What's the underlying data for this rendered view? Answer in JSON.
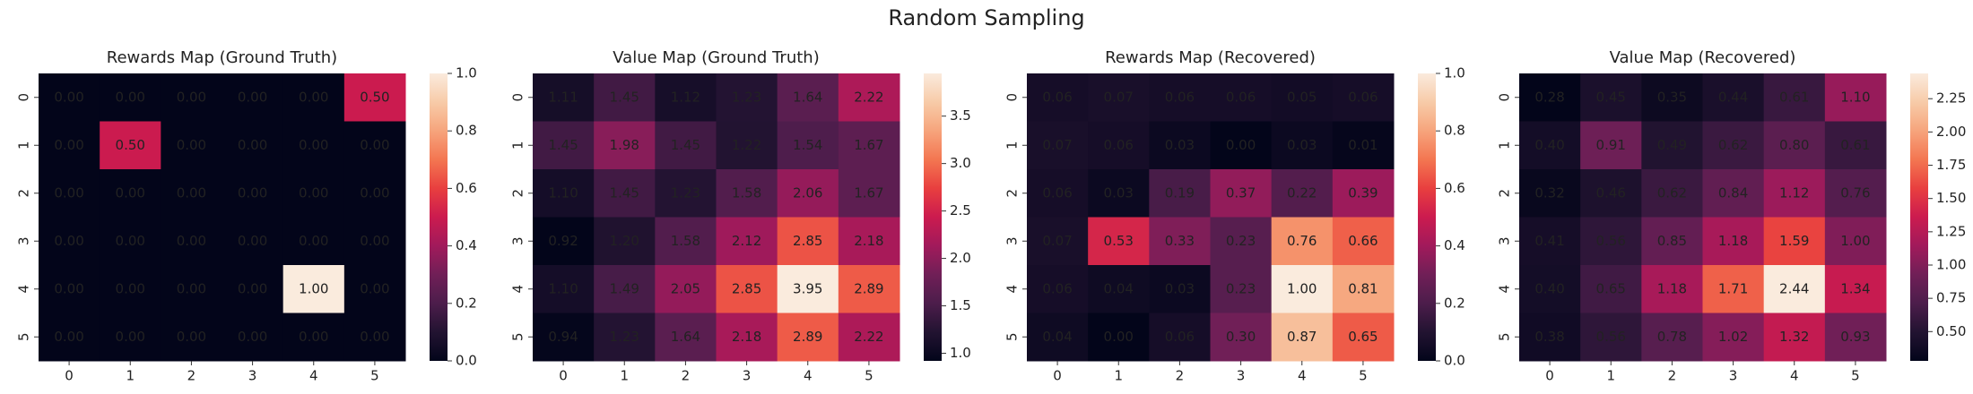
{
  "title": "Random Sampling",
  "chart_data": [
    {
      "type": "heatmap",
      "title": "Rewards Map (Ground Truth)",
      "colormap": "rocket",
      "x": [
        "0",
        "1",
        "2",
        "3",
        "4",
        "5"
      ],
      "y": [
        "0",
        "1",
        "2",
        "3",
        "4",
        "5"
      ],
      "values": [
        [
          0,
          0,
          0,
          0,
          0,
          0.5
        ],
        [
          0,
          0.5,
          0,
          0,
          0,
          0
        ],
        [
          0,
          0,
          0,
          0,
          0,
          0
        ],
        [
          0,
          0,
          0,
          0,
          0,
          0
        ],
        [
          0,
          0,
          0,
          0,
          1,
          0
        ],
        [
          0,
          0,
          0,
          0,
          0,
          0
        ]
      ],
      "value_labels": [
        [
          "0.00",
          "0.00",
          "0.00",
          "0.00",
          "0.00",
          "0.50"
        ],
        [
          "0.00",
          "0.50",
          "0.00",
          "0.00",
          "0.00",
          "0.00"
        ],
        [
          "0.00",
          "0.00",
          "0.00",
          "0.00",
          "0.00",
          "0.00"
        ],
        [
          "0.00",
          "0.00",
          "0.00",
          "0.00",
          "0.00",
          "0.00"
        ],
        [
          "0.00",
          "0.00",
          "0.00",
          "0.00",
          "1.00",
          "0.00"
        ],
        [
          "0.00",
          "0.00",
          "0.00",
          "0.00",
          "0.00",
          "0.00"
        ]
      ],
      "clim": [
        0,
        1
      ],
      "cticks": [
        {
          "value": 0,
          "label": "0.0"
        },
        0.2,
        0.4,
        0.6,
        0.8,
        {
          "value": 1,
          "label": "1.0"
        }
      ]
    },
    {
      "type": "heatmap",
      "title": "Value Map (Ground Truth)",
      "colormap": "rocket",
      "x": [
        "0",
        "1",
        "2",
        "3",
        "4",
        "5"
      ],
      "y": [
        "0",
        "1",
        "2",
        "3",
        "4",
        "5"
      ],
      "values": [
        [
          1.11,
          1.45,
          1.12,
          1.23,
          1.64,
          2.22
        ],
        [
          1.45,
          1.98,
          1.45,
          1.22,
          1.54,
          1.67
        ],
        [
          1.1,
          1.45,
          1.23,
          1.58,
          2.06,
          1.67
        ],
        [
          0.92,
          1.2,
          1.58,
          2.12,
          2.85,
          2.18
        ],
        [
          1.1,
          1.49,
          2.05,
          2.85,
          3.95,
          2.89
        ],
        [
          0.94,
          1.23,
          1.64,
          2.18,
          2.89,
          2.22
        ]
      ],
      "value_labels": [
        [
          "1.11",
          "1.45",
          "1.12",
          "1.23",
          "1.64",
          "2.22"
        ],
        [
          "1.45",
          "1.98",
          "1.45",
          "1.22",
          "1.54",
          "1.67"
        ],
        [
          "1.10",
          "1.45",
          "1.23",
          "1.58",
          "2.06",
          "1.67"
        ],
        [
          "0.92",
          "1.20",
          "1.58",
          "2.12",
          "2.85",
          "2.18"
        ],
        [
          "1.10",
          "1.49",
          "2.05",
          "2.85",
          "3.95",
          "2.89"
        ],
        [
          "0.94",
          "1.23",
          "1.64",
          "2.18",
          "2.89",
          "2.22"
        ]
      ],
      "clim": [
        0.92,
        3.95
      ],
      "cticks": [
        {
          "value": 1,
          "label": "1.0"
        },
        1.5,
        {
          "value": 2,
          "label": "2.0"
        },
        2.5,
        {
          "value": 3,
          "label": "3.0"
        },
        3.5
      ]
    },
    {
      "type": "heatmap",
      "title": "Rewards Map (Recovered)",
      "colormap": "rocket",
      "x": [
        "0",
        "1",
        "2",
        "3",
        "4",
        "5"
      ],
      "y": [
        "0",
        "1",
        "2",
        "3",
        "4",
        "5"
      ],
      "values": [
        [
          0.06,
          0.07,
          0.06,
          0.06,
          0.05,
          0.06
        ],
        [
          0.07,
          0.06,
          0.03,
          0,
          0.03,
          0.01
        ],
        [
          0.06,
          0.03,
          0.19,
          0.37,
          0.22,
          0.39
        ],
        [
          0.07,
          0.53,
          0.33,
          0.23,
          0.76,
          0.66
        ],
        [
          0.06,
          0.04,
          0.03,
          0.23,
          1,
          0.81
        ],
        [
          0.04,
          0,
          0.06,
          0.3,
          0.87,
          0.65
        ]
      ],
      "value_labels": [
        [
          "0.06",
          "0.07",
          "0.06",
          "0.06",
          "0.05",
          "0.06"
        ],
        [
          "0.07",
          "0.06",
          "0.03",
          "0.00",
          "0.03",
          "0.01"
        ],
        [
          "0.06",
          "0.03",
          "0.19",
          "0.37",
          "0.22",
          "0.39"
        ],
        [
          "0.07",
          "0.53",
          "0.33",
          "0.23",
          "0.76",
          "0.66"
        ],
        [
          "0.06",
          "0.04",
          "0.03",
          "0.23",
          "1.00",
          "0.81"
        ],
        [
          "0.04",
          "0.00",
          "0.06",
          "0.30",
          "0.87",
          "0.65"
        ]
      ],
      "clim": [
        0,
        1
      ],
      "cticks": [
        {
          "value": 0,
          "label": "0.0"
        },
        0.2,
        0.4,
        0.6,
        0.8,
        {
          "value": 1,
          "label": "1.0"
        }
      ]
    },
    {
      "type": "heatmap",
      "title": "Value Map (Recovered)",
      "colormap": "rocket",
      "x": [
        "0",
        "1",
        "2",
        "3",
        "4",
        "5"
      ],
      "y": [
        "0",
        "1",
        "2",
        "3",
        "4",
        "5"
      ],
      "values": [
        [
          0.28,
          0.45,
          0.35,
          0.44,
          0.61,
          1.1
        ],
        [
          0.4,
          0.91,
          0.49,
          0.62,
          0.8,
          0.61
        ],
        [
          0.32,
          0.46,
          0.62,
          0.84,
          1.12,
          0.76
        ],
        [
          0.41,
          0.56,
          0.85,
          1.18,
          1.59,
          1
        ],
        [
          0.4,
          0.65,
          1.18,
          1.71,
          2.44,
          1.34
        ],
        [
          0.38,
          0.56,
          0.78,
          1.02,
          1.32,
          0.93
        ]
      ],
      "value_labels": [
        [
          "0.28",
          "0.45",
          "0.35",
          "0.44",
          "0.61",
          "1.10"
        ],
        [
          "0.40",
          "0.91",
          "0.49",
          "0.62",
          "0.80",
          "0.61"
        ],
        [
          "0.32",
          "0.46",
          "0.62",
          "0.84",
          "1.12",
          "0.76"
        ],
        [
          "0.41",
          "0.56",
          "0.85",
          "1.18",
          "1.59",
          "1.00"
        ],
        [
          "0.40",
          "0.65",
          "1.18",
          "1.71",
          "2.44",
          "1.34"
        ],
        [
          "0.38",
          "0.56",
          "0.78",
          "1.02",
          "1.32",
          "0.93"
        ]
      ],
      "clim": [
        0.28,
        2.44
      ],
      "cticks": [
        {
          "value": 0.5,
          "label": "0.50"
        },
        0.75,
        {
          "value": 1,
          "label": "1.00"
        },
        1.25,
        {
          "value": 1.5,
          "label": "1.50"
        },
        1.75,
        {
          "value": 2,
          "label": "2.00"
        },
        2.25
      ]
    }
  ]
}
